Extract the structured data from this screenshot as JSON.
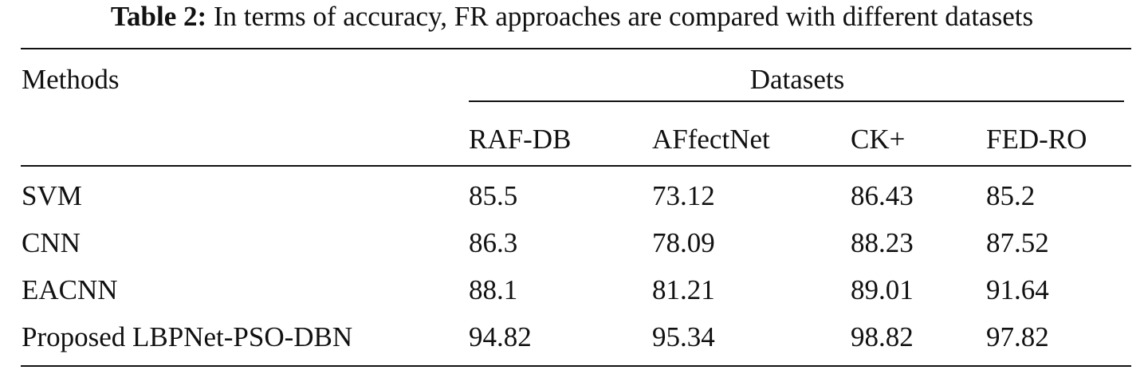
{
  "caption": {
    "label": "Table 2:",
    "text": "In terms of accuracy, FR approaches are compared with different datasets"
  },
  "table": {
    "method_header": "Methods",
    "group_header": "Datasets",
    "columns": [
      "RAF-DB",
      "AFfectNet",
      "CK+",
      "FED-RO"
    ],
    "rows": [
      {
        "method": "SVM",
        "values": [
          "85.5",
          "73.12",
          "86.43",
          "85.2"
        ]
      },
      {
        "method": "CNN",
        "values": [
          "86.3",
          "78.09",
          "88.23",
          "87.52"
        ]
      },
      {
        "method": "EACNN",
        "values": [
          "88.1",
          "81.21",
          "89.01",
          "91.64"
        ]
      },
      {
        "method": "Proposed LBPNet-PSO-DBN",
        "values": [
          "94.82",
          "95.34",
          "98.82",
          "97.82"
        ]
      }
    ]
  }
}
